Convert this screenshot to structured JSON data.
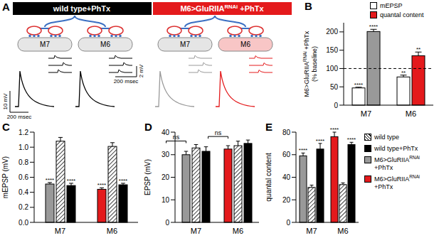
{
  "panel_a": {
    "letter": "A",
    "conditions": [
      {
        "title": {
          "text": "wild type+PhTx"
        },
        "color": "#000000",
        "muscles": [
          "M7",
          "M6"
        ],
        "colors": [
          "#000000",
          "#000000"
        ]
      },
      {
        "title": {
          "text": "M6>GluRIIA",
          "sup": "RNAi",
          "after": " +PhTx"
        },
        "color": "#e41a1c",
        "muscles": [
          "M7",
          "M6"
        ],
        "colors": [
          "#999999",
          "#e41a1c"
        ]
      }
    ],
    "scale_bars": {
      "mini": [
        "2 mV",
        "200 msec"
      ],
      "evoked": [
        "10 mV",
        "200 msec"
      ]
    }
  },
  "chart_data": [
    {
      "letter": "B",
      "type": "bar",
      "categories": [
        "M7",
        "M6"
      ],
      "y_label": [
        {
          "text": "M6>GluRIIA",
          "sup": "RNAi",
          "after": " +PhTx"
        },
        {
          "text": "(% baseline)"
        }
      ],
      "ylim": [
        0,
        225
      ],
      "yticks": [
        0,
        50,
        100,
        150,
        200
      ],
      "reference_line": 100,
      "legend": "top right",
      "series": [
        {
          "name": "mEPSP",
          "color": "#ffffff",
          "values": [
            47,
            77
          ],
          "errors": [
            2,
            5
          ],
          "significance": [
            "****",
            "**"
          ]
        },
        {
          "name": "quantal content",
          "color": "#e41a1c",
          "colors": [
            "#999999",
            "#e41a1c"
          ],
          "values": [
            201,
            135
          ],
          "errors": [
            6,
            10
          ],
          "significance": [
            "****",
            "**"
          ]
        }
      ]
    },
    {
      "letter": "C",
      "type": "bar",
      "categories": [
        "M7",
        "M6"
      ],
      "y_label": "mEPSP (mV)",
      "ylim": [
        0,
        1.2
      ],
      "yticks": [
        {
          "value": 0,
          "label": "0.0"
        },
        0.2,
        0.4,
        0.6,
        0.8,
        {
          "value": 1,
          "label": "1.0"
        },
        1.2
      ],
      "series": [
        {
          "color": "#ffffff",
          "values": [
            1.08,
            1.01
          ],
          "errors": [
            0.05,
            0.05
          ]
        },
        {
          "color": "#000000",
          "values": [
            0.49,
            0.5
          ],
          "errors": [
            0.03,
            0.02
          ],
          "significance": [
            "****",
            "****"
          ]
        },
        {
          "color": "#999999",
          "values": [
            0.51,
            null
          ],
          "errors": [
            0.02,
            null
          ],
          "significance": [
            "****",
            null
          ]
        },
        {
          "color": "#e41a1c",
          "values": [
            null,
            0.44
          ],
          "errors": [
            null,
            0.02
          ],
          "significance": [
            null,
            "****"
          ]
        }
      ]
    },
    {
      "letter": "D",
      "type": "bar",
      "categories": [
        "M7",
        "M6"
      ],
      "y_label": "EPSP (mV)",
      "ylim": [
        0,
        40
      ],
      "yticks": [
        0,
        10,
        20,
        30,
        40
      ],
      "comparisons": [
        {
          "category": "M7",
          "label": "ns"
        },
        {
          "category": "M6",
          "label": "ns"
        }
      ],
      "series": [
        {
          "color": "#ffffff",
          "values": [
            33,
            34
          ],
          "errors": [
            1.5,
            2
          ]
        },
        {
          "color": "#000000",
          "values": [
            31.5,
            35
          ],
          "errors": [
            2,
            1.5
          ]
        },
        {
          "color": "#999999",
          "values": [
            30,
            null
          ],
          "errors": [
            1.5,
            null
          ]
        },
        {
          "color": "#e41a1c",
          "values": [
            null,
            32.5
          ],
          "errors": [
            null,
            1.5
          ]
        }
      ]
    },
    {
      "letter": "E",
      "type": "bar",
      "categories": [
        "M7",
        "M6"
      ],
      "y_label": "quantal content",
      "ylim": [
        0,
        80
      ],
      "yticks": [
        0,
        20,
        40,
        60,
        80
      ],
      "legend": "right",
      "series": [
        {
          "name": "wild type",
          "color": "#ffffff",
          "values": [
            31,
            33.5
          ],
          "errors": [
            2,
            1.5
          ]
        },
        {
          "name": "wild type+PhTx",
          "color": "#000000",
          "values": [
            65,
            69
          ],
          "errors": [
            5,
            2
          ],
          "significance": [
            "****",
            "****"
          ]
        },
        {
          "name": {
            "text": "M6>GluRIIA",
            "sup": "RNAi",
            "after": "+PhTx"
          },
          "color": "#999999",
          "values": [
            59,
            null
          ],
          "errors": [
            2.5,
            null
          ],
          "significance": [
            "****",
            null
          ]
        },
        {
          "name": {
            "text": "M6>GluRIIA",
            "sup": "RNAi",
            "after": "+PhTx"
          },
          "color": "#e41a1c",
          "values": [
            null,
            76
          ],
          "errors": [
            null,
            4
          ],
          "significance": [
            null,
            "****"
          ]
        }
      ]
    }
  ]
}
